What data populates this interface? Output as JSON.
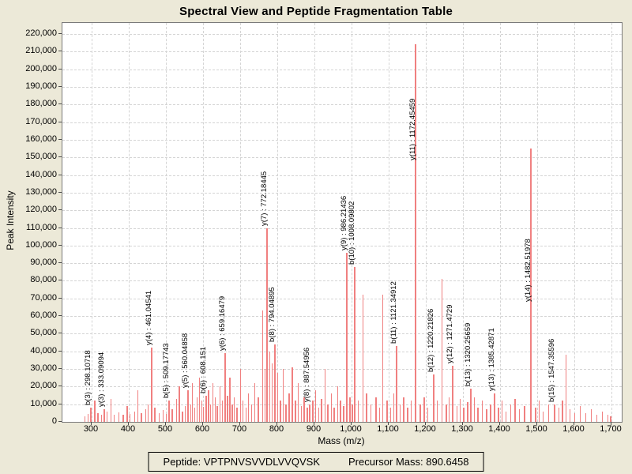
{
  "title": "Spectral View and Peptide Fragmentation Table",
  "footer": {
    "peptide_text": "Peptide: VPTPNVSVVDLVVQVSK",
    "precursor_text": "Precursor Mass: 890.6458"
  },
  "colors": {
    "page_background": "#ece9d8",
    "plot_background": "#ffffff",
    "peak_color": "#f08080",
    "grid_color": "#d4d4d4",
    "text_color": "#000000"
  },
  "chart_data": {
    "type": "bar",
    "title": "Spectral View and Peptide Fragmentation Table",
    "xlabel": "Mass (m/z)",
    "ylabel": "Peak Intensity",
    "xlim": [
      220,
      1727
    ],
    "ylim": [
      0,
      226300
    ],
    "grid": "dashed-both",
    "legend": "none",
    "x_ticks": [
      {
        "v": 300,
        "l": "300"
      },
      {
        "v": 400,
        "l": "400"
      },
      {
        "v": 500,
        "l": "500"
      },
      {
        "v": 600,
        "l": "600"
      },
      {
        "v": 700,
        "l": "700"
      },
      {
        "v": 800,
        "l": "800"
      },
      {
        "v": 900,
        "l": "900"
      },
      {
        "v": 1000,
        "l": "1,000"
      },
      {
        "v": 1100,
        "l": "1,100"
      },
      {
        "v": 1200,
        "l": "1,200"
      },
      {
        "v": 1300,
        "l": "1,300"
      },
      {
        "v": 1400,
        "l": "1,400"
      },
      {
        "v": 1500,
        "l": "1,500"
      },
      {
        "v": 1600,
        "l": "1,600"
      },
      {
        "v": 1700,
        "l": "1,700"
      }
    ],
    "y_ticks": [
      {
        "v": 0,
        "l": "0"
      },
      {
        "v": 10000,
        "l": "10,000"
      },
      {
        "v": 20000,
        "l": "20,000"
      },
      {
        "v": 30000,
        "l": "30,000"
      },
      {
        "v": 40000,
        "l": "40,000"
      },
      {
        "v": 50000,
        "l": "50,000"
      },
      {
        "v": 60000,
        "l": "60,000"
      },
      {
        "v": 70000,
        "l": "70,000"
      },
      {
        "v": 80000,
        "l": "80,000"
      },
      {
        "v": 90000,
        "l": "90,000"
      },
      {
        "v": 100000,
        "l": "100,000"
      },
      {
        "v": 110000,
        "l": "110,000"
      },
      {
        "v": 120000,
        "l": "120,000"
      },
      {
        "v": 130000,
        "l": "130,000"
      },
      {
        "v": 140000,
        "l": "140,000"
      },
      {
        "v": 150000,
        "l": "150,000"
      },
      {
        "v": 160000,
        "l": "160,000"
      },
      {
        "v": 170000,
        "l": "170,000"
      },
      {
        "v": 180000,
        "l": "180,000"
      },
      {
        "v": 190000,
        "l": "190,000"
      },
      {
        "v": 200000,
        "l": "200,000"
      },
      {
        "v": 210000,
        "l": "210,000"
      },
      {
        "v": 220000,
        "l": "220,000"
      }
    ],
    "labeled_peaks": [
      {
        "ion": "b(3)",
        "mz": 298.10718,
        "intensity": 8000,
        "label": "b(3) : 298.10718"
      },
      {
        "ion": "y(3)",
        "mz": 333.09094,
        "intensity": 7000,
        "label": "y(3) : 333.09094"
      },
      {
        "ion": "y(4)",
        "mz": 461.04541,
        "intensity": 42000,
        "label": "y(4) : 461.04541"
      },
      {
        "ion": "b(5)",
        "mz": 509.17743,
        "intensity": 12000,
        "label": "b(5) : 509.17743"
      },
      {
        "ion": "y(5)",
        "mz": 560.04858,
        "intensity": 18000,
        "label": "y(5) : 560.04858"
      },
      {
        "ion": "b(6)",
        "mz": 608.151,
        "intensity": 15000,
        "label": "b(6) : 608.151"
      },
      {
        "ion": "y(6)",
        "mz": 659.16479,
        "intensity": 39000,
        "label": "y(6) : 659.16479"
      },
      {
        "ion": "y(7)",
        "mz": 772.18445,
        "intensity": 110000,
        "label": "y(7) : 772.18445"
      },
      {
        "ion": "b(8)",
        "mz": 794.04895,
        "intensity": 44000,
        "label": "b(8) : 794.04895"
      },
      {
        "ion": "y(8)",
        "mz": 887.54956,
        "intensity": 10000,
        "label": "y(8) : 887.54956"
      },
      {
        "ion": "y(9)",
        "mz": 986.21436,
        "intensity": 96000,
        "label": "y(9) : 986.21436"
      },
      {
        "ion": "b(10)",
        "mz": 1008.09802,
        "intensity": 88000,
        "label": "b(10) : 1008.09802"
      },
      {
        "ion": "b(11)",
        "mz": 1121.34912,
        "intensity": 43000,
        "label": "b(11) : 1121.34912"
      },
      {
        "ion": "y(11)",
        "mz": 1172.45459,
        "intensity": 214000,
        "label": "y(11) : 1172.45459",
        "label_drop": 147
      },
      {
        "ion": "b(12)",
        "mz": 1220.21826,
        "intensity": 27000,
        "label": "b(12) : 1220.21826"
      },
      {
        "ion": "y(12)",
        "mz": 1271.4729,
        "intensity": 32000,
        "label": "y(12) : 1271.4729"
      },
      {
        "ion": "b(13)",
        "mz": 1320.25659,
        "intensity": 19000,
        "label": "b(13) : 1320.25659"
      },
      {
        "ion": "y(13)",
        "mz": 1385.42871,
        "intensity": 16000,
        "label": "y(13) : 1385.42871"
      },
      {
        "ion": "y(14)",
        "mz": 1482.51978,
        "intensity": 155000,
        "label": "y(14) : 1482.51978",
        "label_drop": 194
      },
      {
        "ion": "b(15)",
        "mz": 1547.35596,
        "intensity": 10000,
        "label": "b(15) : 1547.35596"
      }
    ],
    "background_peaks": [
      [
        281,
        3000
      ],
      [
        290,
        4500
      ],
      [
        308,
        12000
      ],
      [
        316,
        5000
      ],
      [
        326,
        4000
      ],
      [
        341,
        6000
      ],
      [
        352,
        13000
      ],
      [
        360,
        4000
      ],
      [
        373,
        5500
      ],
      [
        385,
        4000
      ],
      [
        395,
        9000
      ],
      [
        403,
        4500
      ],
      [
        415,
        6000
      ],
      [
        424,
        18000
      ],
      [
        434,
        5000
      ],
      [
        445,
        7000
      ],
      [
        452,
        10000
      ],
      [
        470,
        8000
      ],
      [
        481,
        5000
      ],
      [
        492,
        6500
      ],
      [
        500,
        4500
      ],
      [
        517,
        7000
      ],
      [
        528,
        13000
      ],
      [
        536,
        20000
      ],
      [
        544,
        6000
      ],
      [
        552,
        9000
      ],
      [
        566,
        10000
      ],
      [
        571,
        22000
      ],
      [
        577,
        8000
      ],
      [
        583,
        14000
      ],
      [
        590,
        25000
      ],
      [
        596,
        12000
      ],
      [
        601,
        8500
      ],
      [
        614,
        18000
      ],
      [
        620,
        10000
      ],
      [
        626,
        22000
      ],
      [
        632,
        14000
      ],
      [
        638,
        9000
      ],
      [
        645,
        20000
      ],
      [
        652,
        12000
      ],
      [
        665,
        15000
      ],
      [
        672,
        25000
      ],
      [
        678,
        10000
      ],
      [
        684,
        14000
      ],
      [
        691,
        8000
      ],
      [
        700,
        30000
      ],
      [
        707,
        12000
      ],
      [
        715,
        8000
      ],
      [
        722,
        16000
      ],
      [
        730,
        10000
      ],
      [
        739,
        22000
      ],
      [
        748,
        14000
      ],
      [
        760,
        63000
      ],
      [
        766,
        30000
      ],
      [
        779,
        40000
      ],
      [
        786,
        33000
      ],
      [
        801,
        28000
      ],
      [
        808,
        12000
      ],
      [
        815,
        30000
      ],
      [
        823,
        10000
      ],
      [
        831,
        16000
      ],
      [
        840,
        31000
      ],
      [
        848,
        12000
      ],
      [
        856,
        22000
      ],
      [
        864,
        9000
      ],
      [
        872,
        14000
      ],
      [
        880,
        8000
      ],
      [
        895,
        12000
      ],
      [
        903,
        18000
      ],
      [
        911,
        8000
      ],
      [
        919,
        13000
      ],
      [
        928,
        30000
      ],
      [
        936,
        10000
      ],
      [
        945,
        16000
      ],
      [
        953,
        8000
      ],
      [
        962,
        20000
      ],
      [
        970,
        12000
      ],
      [
        978,
        9000
      ],
      [
        995,
        14000
      ],
      [
        1002,
        10000
      ],
      [
        1018,
        12000
      ],
      [
        1030,
        72000
      ],
      [
        1040,
        16000
      ],
      [
        1052,
        10000
      ],
      [
        1065,
        14000
      ],
      [
        1075,
        8000
      ],
      [
        1083,
        72000
      ],
      [
        1095,
        12000
      ],
      [
        1105,
        8000
      ],
      [
        1113,
        16000
      ],
      [
        1130,
        10000
      ],
      [
        1140,
        14000
      ],
      [
        1150,
        8000
      ],
      [
        1160,
        12000
      ],
      [
        1185,
        10000
      ],
      [
        1195,
        14000
      ],
      [
        1205,
        8000
      ],
      [
        1230,
        12000
      ],
      [
        1243,
        81000
      ],
      [
        1255,
        10000
      ],
      [
        1262,
        14000
      ],
      [
        1283,
        9000
      ],
      [
        1292,
        13000
      ],
      [
        1302,
        8000
      ],
      [
        1312,
        11000
      ],
      [
        1330,
        14000
      ],
      [
        1340,
        8000
      ],
      [
        1352,
        12000
      ],
      [
        1363,
        7000
      ],
      [
        1374,
        10000
      ],
      [
        1395,
        8000
      ],
      [
        1405,
        12000
      ],
      [
        1415,
        6000
      ],
      [
        1428,
        10000
      ],
      [
        1440,
        13000
      ],
      [
        1452,
        7000
      ],
      [
        1465,
        9000
      ],
      [
        1495,
        8000
      ],
      [
        1505,
        12000
      ],
      [
        1515,
        6000
      ],
      [
        1530,
        10000
      ],
      [
        1558,
        8000
      ],
      [
        1568,
        12000
      ],
      [
        1577,
        38000
      ],
      [
        1588,
        7000
      ],
      [
        1600,
        5000
      ],
      [
        1615,
        9000
      ],
      [
        1630,
        5000
      ],
      [
        1645,
        7000
      ],
      [
        1660,
        4000
      ],
      [
        1675,
        6000
      ],
      [
        1690,
        4000
      ],
      [
        1697,
        3000
      ]
    ]
  }
}
